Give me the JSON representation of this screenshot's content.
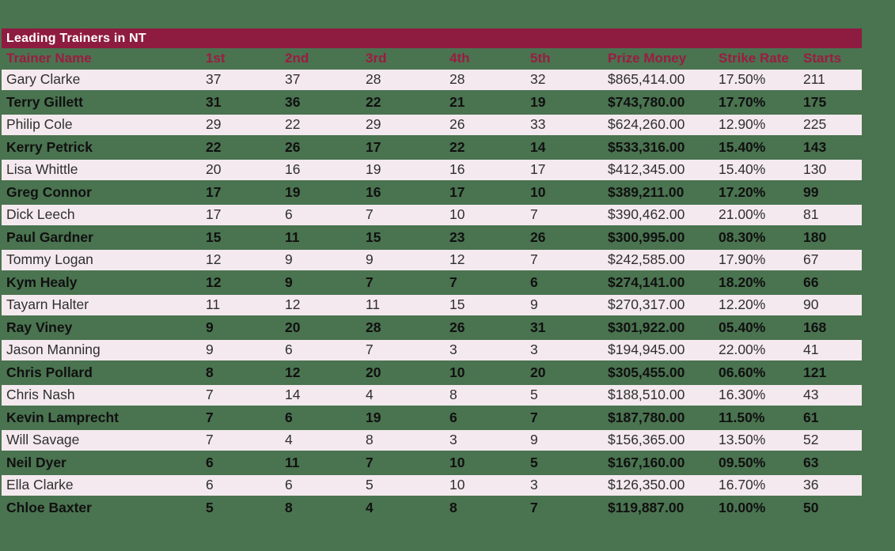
{
  "colors": {
    "page_background": "#4a7350",
    "title_bar": "#8e1b40",
    "title_text": "#ffffff",
    "header_text": "#9c1c42",
    "row_light": "#f4e9ee",
    "row_light_text": "#2f2f2f",
    "row_dark_text": "#101010"
  },
  "chart_data": {
    "type": "table",
    "title": "Leading Trainers in NT",
    "columns": [
      "Trainer Name",
      "1st",
      "2nd",
      "3rd",
      "4th",
      "5th",
      "Prize Money",
      "Strike Rate",
      "Starts"
    ],
    "column_keys": [
      "trainer-name",
      "1st",
      "2nd",
      "3rd",
      "4th",
      "5th",
      "prize-money",
      "strike-rate",
      "starts"
    ],
    "rows": [
      [
        "Gary Clarke",
        "37",
        "37",
        "28",
        "28",
        "32",
        "$865,414.00",
        "17.50%",
        "211"
      ],
      [
        "Terry Gillett",
        "31",
        "36",
        "22",
        "21",
        "19",
        "$743,780.00",
        "17.70%",
        "175"
      ],
      [
        "Philip Cole",
        "29",
        "22",
        "29",
        "26",
        "33",
        "$624,260.00",
        "12.90%",
        "225"
      ],
      [
        "Kerry Petrick",
        "22",
        "26",
        "17",
        "22",
        "14",
        "$533,316.00",
        "15.40%",
        "143"
      ],
      [
        "Lisa Whittle",
        "20",
        "16",
        "19",
        "16",
        "17",
        "$412,345.00",
        "15.40%",
        "130"
      ],
      [
        "Greg Connor",
        "17",
        "19",
        "16",
        "17",
        "10",
        "$389,211.00",
        "17.20%",
        "99"
      ],
      [
        "Dick Leech",
        "17",
        "6",
        "7",
        "10",
        "7",
        "$390,462.00",
        "21.00%",
        "81"
      ],
      [
        "Paul Gardner",
        "15",
        "11",
        "15",
        "23",
        "26",
        "$300,995.00",
        "08.30%",
        "180"
      ],
      [
        "Tommy Logan",
        "12",
        "9",
        "9",
        "12",
        "7",
        "$242,585.00",
        "17.90%",
        "67"
      ],
      [
        "Kym Healy",
        "12",
        "9",
        "7",
        "7",
        "6",
        "$274,141.00",
        "18.20%",
        "66"
      ],
      [
        "Tayarn Halter",
        "11",
        "12",
        "11",
        "15",
        "9",
        "$270,317.00",
        "12.20%",
        "90"
      ],
      [
        "Ray Viney",
        "9",
        "20",
        "28",
        "26",
        "31",
        "$301,922.00",
        "05.40%",
        "168"
      ],
      [
        "Jason Manning",
        "9",
        "6",
        "7",
        "3",
        "3",
        "$194,945.00",
        "22.00%",
        "41"
      ],
      [
        "Chris Pollard",
        "8",
        "12",
        "20",
        "10",
        "20",
        "$305,455.00",
        "06.60%",
        "121"
      ],
      [
        "Chris Nash",
        "7",
        "14",
        "4",
        "8",
        "5",
        "$188,510.00",
        "16.30%",
        "43"
      ],
      [
        "Kevin Lamprecht",
        "7",
        "6",
        "19",
        "6",
        "7",
        "$187,780.00",
        "11.50%",
        "61"
      ],
      [
        "Will Savage",
        "7",
        "4",
        "8",
        "3",
        "9",
        "$156,365.00",
        "13.50%",
        "52"
      ],
      [
        "Neil Dyer",
        "6",
        "11",
        "7",
        "10",
        "5",
        "$167,160.00",
        "09.50%",
        "63"
      ],
      [
        "Ella Clarke",
        "6",
        "6",
        "5",
        "10",
        "3",
        "$126,350.00",
        "16.70%",
        "36"
      ],
      [
        "Chloe Baxter",
        "5",
        "8",
        "4",
        "8",
        "7",
        "$119,887.00",
        "10.00%",
        "50"
      ]
    ]
  }
}
